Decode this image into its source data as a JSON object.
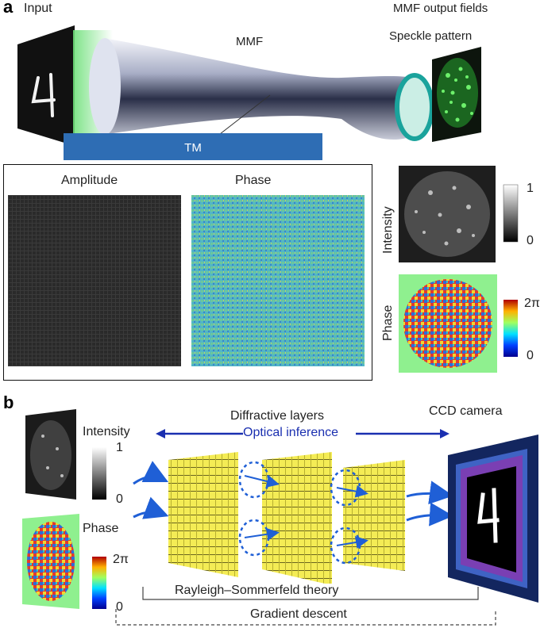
{
  "panel_a": {
    "letter": "a",
    "input_label": "Input",
    "mmf_label": "MMF",
    "output_fields_label": "MMF output fields",
    "speckle_label": "Speckle pattern",
    "tm_label": "TM",
    "amplitude_label": "Amplitude",
    "phase_label": "Phase",
    "intensity_side_label": "Intensity",
    "phase_side_label": "Phase",
    "intensity_scale": {
      "max": "1",
      "min": "0"
    },
    "phase_scale": {
      "max": "2π",
      "min": "0"
    },
    "input_digit": "4"
  },
  "panel_b": {
    "letter": "b",
    "intensity_label": "Intensity",
    "phase_label": "Phase",
    "intensity_scale": {
      "max": "1",
      "min": "0"
    },
    "phase_scale": {
      "max": "2π",
      "min": "0"
    },
    "diffractive_label": "Diffractive layers",
    "optical_inference_label": "Optical inference",
    "ccd_label": "CCD camera",
    "rayleigh_label": "Rayleigh–Sommerfeld theory",
    "gradient_label": "Gradient descent",
    "output_digit": "4"
  },
  "colors": {
    "tm_bar": "#2e6db4",
    "arrow_blue": "#1f5fd6",
    "inference_arrow": "#1a2fb0",
    "layer_yellow": "#f4ec55",
    "camera_navy": "#13265f",
    "camera_purple": "#7a3fb3",
    "phase_bg": "#8ff08f"
  }
}
